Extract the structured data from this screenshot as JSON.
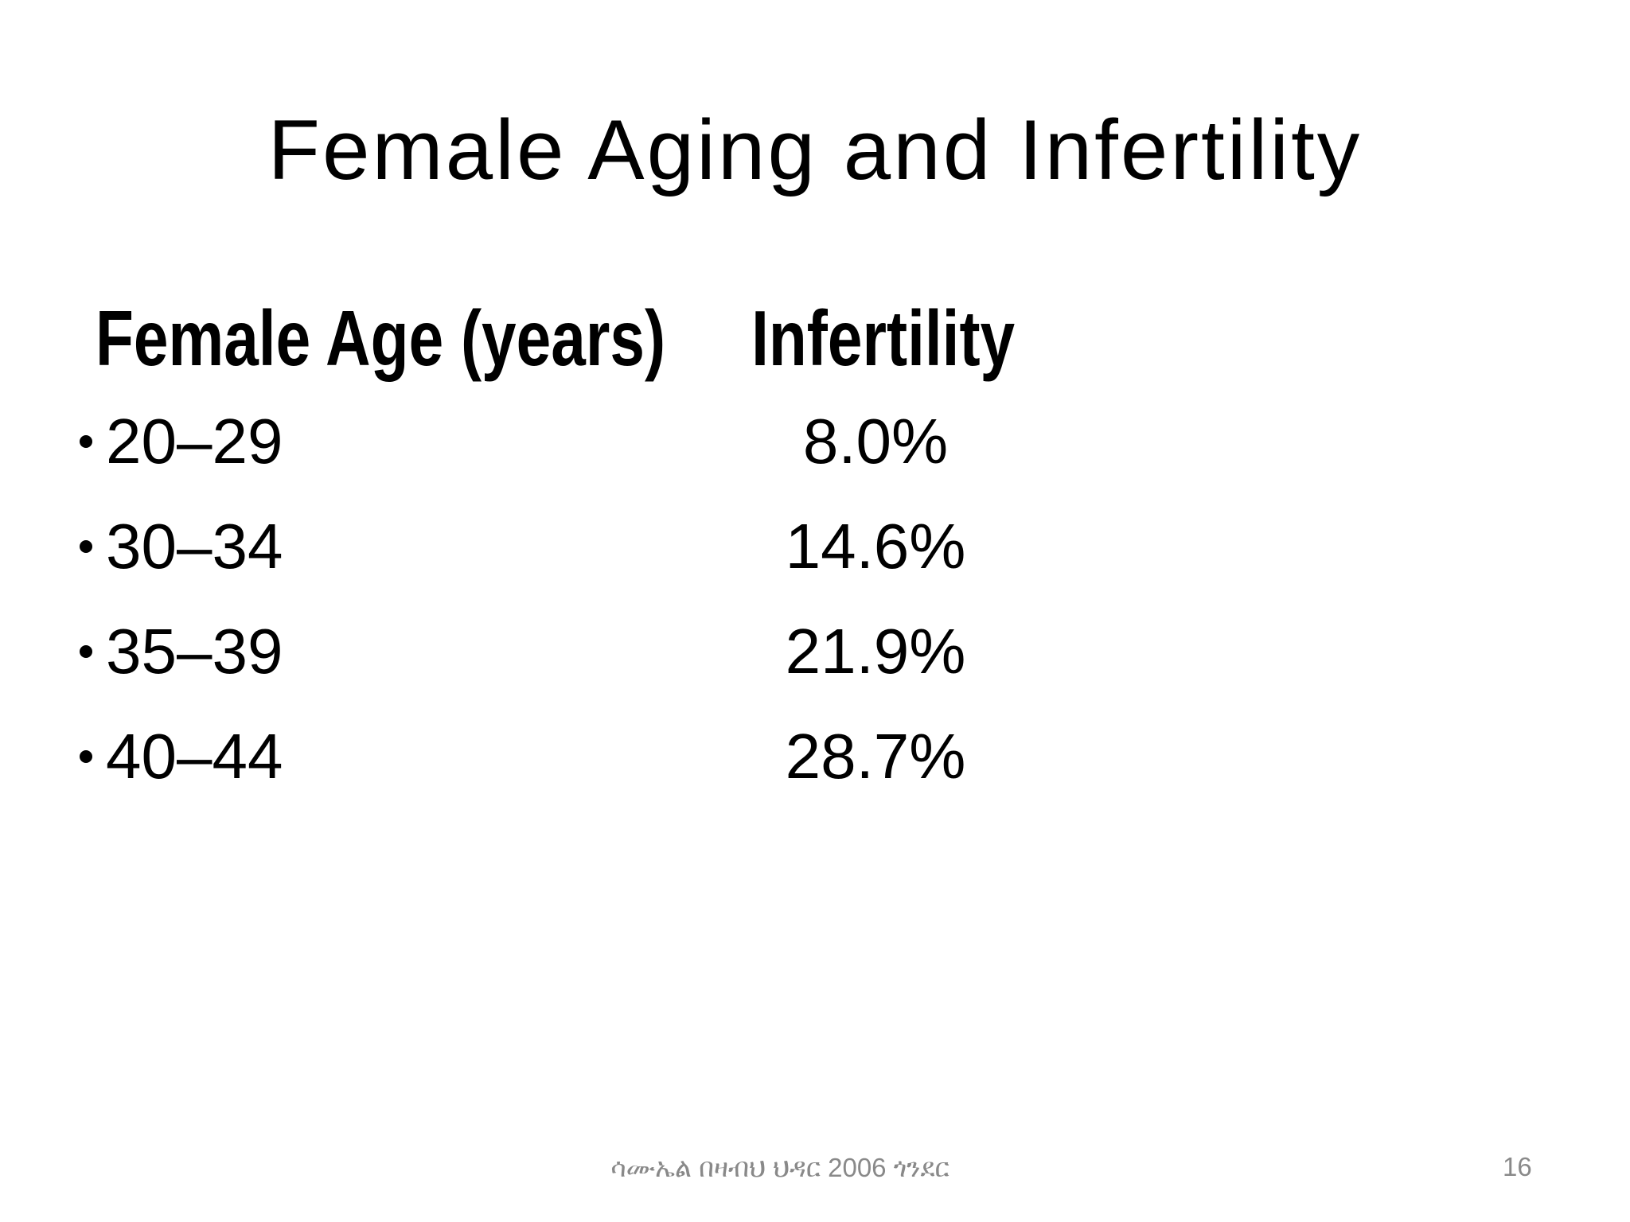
{
  "slide": {
    "title": "Female Aging and Infertility",
    "table": {
      "header": {
        "age_label": "Female Age (years)",
        "infertility_label": "Infertility"
      },
      "rows": [
        {
          "age": "20–29",
          "infertility": "8.0%"
        },
        {
          "age": "30–34",
          "infertility": "14.6%"
        },
        {
          "age": "35–39",
          "infertility": "21.9%"
        },
        {
          "age": "40–44",
          "infertility": "28.7%"
        }
      ]
    },
    "footer": {
      "credit": "ሳሙኤል በዛብህ ህዳር 2006 ጎንደር",
      "page_number": "16"
    },
    "colors": {
      "text": "#000000",
      "muted_footer_text": "#898989",
      "background": "#ffffff"
    }
  }
}
